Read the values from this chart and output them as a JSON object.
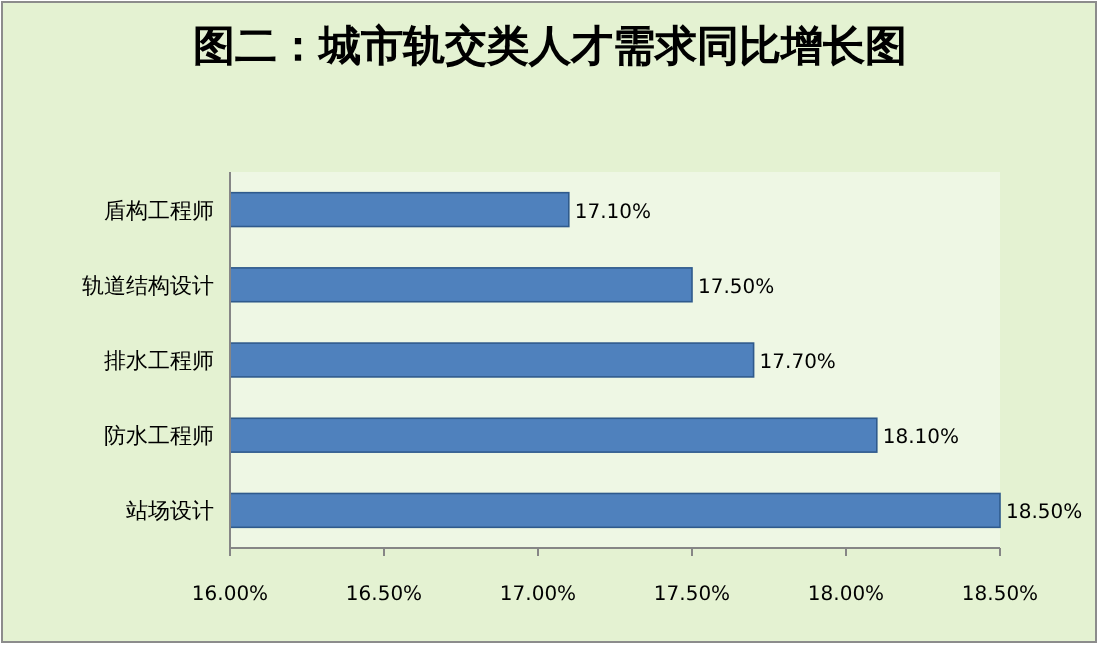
{
  "chart_data": {
    "type": "bar",
    "orientation": "horizontal",
    "title": "图二：城市轨交类人才需求同比增长图",
    "categories": [
      "盾构工程师",
      "轨道结构设计",
      "排水工程师",
      "防水工程师",
      "站场设计"
    ],
    "values": [
      17.1,
      17.5,
      17.7,
      18.1,
      18.5
    ],
    "value_labels": [
      "17.10%",
      "17.50%",
      "17.70%",
      "18.10%",
      "18.50%"
    ],
    "color": "#4f81bd",
    "xlim": [
      16,
      18.5
    ],
    "xticks": [
      {
        "value": 16,
        "label": "16.00%"
      },
      {
        "value": 16.5,
        "label": "16.50%"
      },
      {
        "value": 17,
        "label": "17.00%"
      },
      {
        "value": 17.5,
        "label": "17.50%"
      },
      {
        "value": 18,
        "label": "18.00%"
      },
      {
        "value": 18.5,
        "label": "18.50%"
      }
    ]
  }
}
